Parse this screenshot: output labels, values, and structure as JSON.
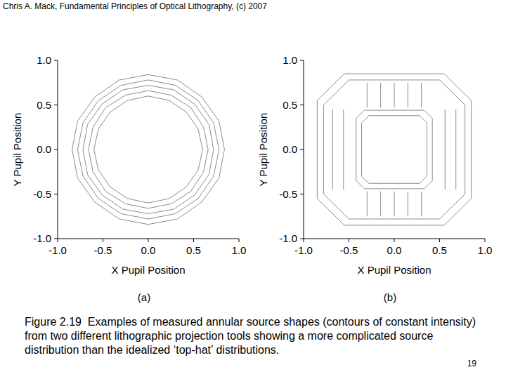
{
  "header": "Chris A. Mack, Fundamental Principles of Optical Lithography, (c) 2007",
  "chart_data": [
    {
      "type": "contour",
      "panel_label": "(a)",
      "x_label": "X Pupil Position",
      "y_label": "Y Pupil Position",
      "xlim": [
        -1,
        1
      ],
      "ylim": [
        -1,
        1
      ],
      "xticks": [
        {
          "value": -1,
          "label": "-1.0"
        },
        -0.5,
        {
          "value": 0,
          "label": "0.0"
        },
        0.5,
        {
          "value": 1,
          "label": "1.0"
        }
      ],
      "yticks": [
        {
          "value": -1,
          "label": "-1.0"
        },
        -0.5,
        {
          "value": 0,
          "label": "0.0"
        },
        0.5,
        {
          "value": 1,
          "label": "1.0"
        }
      ],
      "color": "#8c8c8c",
      "contours": [
        {
          "x": [
            0.6,
            0.55,
            0.42,
            0.23,
            0,
            -0.23,
            -0.42,
            -0.55,
            -0.6,
            -0.55,
            -0.42,
            -0.23,
            0,
            0.23,
            0.42,
            0.55,
            0.6
          ],
          "y": [
            0,
            0.23,
            0.42,
            0.55,
            0.6,
            0.55,
            0.42,
            0.23,
            0,
            -0.23,
            -0.42,
            -0.55,
            -0.6,
            -0.55,
            -0.42,
            -0.23,
            0
          ]
        },
        {
          "x": [
            0.66,
            0.61,
            0.47,
            0.25,
            0,
            -0.25,
            -0.47,
            -0.61,
            -0.66,
            -0.61,
            -0.47,
            -0.25,
            0,
            0.25,
            0.47,
            0.61,
            0.66
          ],
          "y": [
            0,
            0.25,
            0.47,
            0.61,
            0.66,
            0.61,
            0.47,
            0.25,
            0,
            -0.25,
            -0.47,
            -0.61,
            -0.66,
            -0.61,
            -0.47,
            -0.25,
            0
          ]
        },
        {
          "x": [
            0.72,
            0.67,
            0.51,
            0.28,
            0,
            -0.28,
            -0.51,
            -0.67,
            -0.72,
            -0.67,
            -0.51,
            -0.28,
            0,
            0.28,
            0.51,
            0.67,
            0.72
          ],
          "y": [
            0,
            0.28,
            0.51,
            0.67,
            0.72,
            0.67,
            0.51,
            0.28,
            0,
            -0.28,
            -0.51,
            -0.67,
            -0.72,
            -0.67,
            -0.51,
            -0.28,
            0
          ]
        },
        {
          "x": [
            0.78,
            0.72,
            0.55,
            0.3,
            0,
            -0.3,
            -0.55,
            -0.72,
            -0.78,
            -0.72,
            -0.55,
            -0.3,
            0,
            0.3,
            0.55,
            0.72,
            0.78
          ],
          "y": [
            0,
            0.3,
            0.55,
            0.72,
            0.78,
            0.72,
            0.55,
            0.3,
            0,
            -0.3,
            -0.55,
            -0.72,
            -0.78,
            -0.72,
            -0.55,
            -0.3,
            0
          ]
        },
        {
          "x": [
            0.84,
            0.78,
            0.59,
            0.32,
            0,
            -0.32,
            -0.59,
            -0.78,
            -0.84,
            -0.78,
            -0.59,
            -0.32,
            0,
            0.32,
            0.59,
            0.78,
            0.84
          ],
          "y": [
            0,
            0.32,
            0.59,
            0.78,
            0.84,
            0.78,
            0.59,
            0.32,
            0,
            -0.32,
            -0.59,
            -0.78,
            -0.84,
            -0.78,
            -0.59,
            -0.32,
            0
          ]
        }
      ]
    },
    {
      "type": "contour",
      "panel_label": "(b)",
      "x_label": "X Pupil Position",
      "y_label": "Y Pupil Position",
      "xlim": [
        -1,
        1
      ],
      "ylim": [
        -1,
        1
      ],
      "xticks": [
        {
          "value": -1,
          "label": "-1.0"
        },
        -0.5,
        {
          "value": 0,
          "label": "0.0"
        },
        0.5,
        {
          "value": 1,
          "label": "1.0"
        }
      ],
      "yticks": [
        {
          "value": -1,
          "label": "-1.0"
        },
        -0.5,
        {
          "value": 0,
          "label": "0.0"
        },
        0.5,
        {
          "value": 1,
          "label": "1.0"
        }
      ],
      "color": "#8c8c8c",
      "contours": [
        {
          "x": [
            -0.55,
            0.55,
            0.85,
            0.85,
            0.55,
            -0.55,
            -0.85,
            -0.85,
            -0.55
          ],
          "y": [
            0.85,
            0.85,
            0.55,
            -0.55,
            -0.85,
            -0.85,
            -0.55,
            0.55,
            0.85
          ]
        },
        {
          "x": [
            -0.5,
            0.5,
            0.78,
            0.78,
            0.5,
            -0.5,
            -0.78,
            -0.78,
            -0.5
          ],
          "y": [
            0.78,
            0.78,
            0.5,
            -0.5,
            -0.78,
            -0.78,
            -0.5,
            0.5,
            0.78
          ]
        },
        {
          "x": [
            -0.28,
            0.28,
            0.36,
            0.36,
            0.28,
            -0.28,
            -0.36,
            -0.36,
            -0.28
          ],
          "y": [
            0.38,
            0.38,
            0.3,
            -0.3,
            -0.38,
            -0.38,
            -0.3,
            0.3,
            0.38
          ]
        },
        {
          "x": [
            -0.33,
            0.33,
            0.42,
            0.42,
            0.33,
            -0.33,
            -0.42,
            -0.42,
            -0.33
          ],
          "y": [
            0.44,
            0.44,
            0.35,
            -0.35,
            -0.44,
            -0.44,
            -0.35,
            0.35,
            0.44
          ]
        },
        {
          "x": [
            -0.3,
            -0.3
          ],
          "y": [
            0.47,
            0.75
          ]
        },
        {
          "x": [
            -0.15,
            -0.15
          ],
          "y": [
            0.47,
            0.75
          ]
        },
        {
          "x": [
            0,
            0
          ],
          "y": [
            0.47,
            0.75
          ]
        },
        {
          "x": [
            0.15,
            0.15
          ],
          "y": [
            0.47,
            0.75
          ]
        },
        {
          "x": [
            0.3,
            0.3
          ],
          "y": [
            0.47,
            0.75
          ]
        },
        {
          "x": [
            -0.3,
            -0.3
          ],
          "y": [
            -0.75,
            -0.47
          ]
        },
        {
          "x": [
            -0.15,
            -0.15
          ],
          "y": [
            -0.75,
            -0.47
          ]
        },
        {
          "x": [
            0,
            0
          ],
          "y": [
            -0.75,
            -0.47
          ]
        },
        {
          "x": [
            0.15,
            0.15
          ],
          "y": [
            -0.75,
            -0.47
          ]
        },
        {
          "x": [
            0.3,
            0.3
          ],
          "y": [
            -0.75,
            -0.47
          ]
        },
        {
          "x": [
            -0.68,
            -0.68
          ],
          "y": [
            -0.45,
            0.45
          ]
        },
        {
          "x": [
            -0.56,
            -0.56
          ],
          "y": [
            -0.45,
            0.45
          ]
        },
        {
          "x": [
            0.56,
            0.56
          ],
          "y": [
            -0.45,
            0.45
          ]
        },
        {
          "x": [
            0.68,
            0.68
          ],
          "y": [
            -0.45,
            0.45
          ]
        }
      ]
    }
  ],
  "caption": "Figure 2.19  Examples of measured annular source shapes (contours of constant intensity) from two different lithographic projection tools showing a more complicated source distribution than the idealized ‘top-hat’ distributions.",
  "page_number": "19"
}
